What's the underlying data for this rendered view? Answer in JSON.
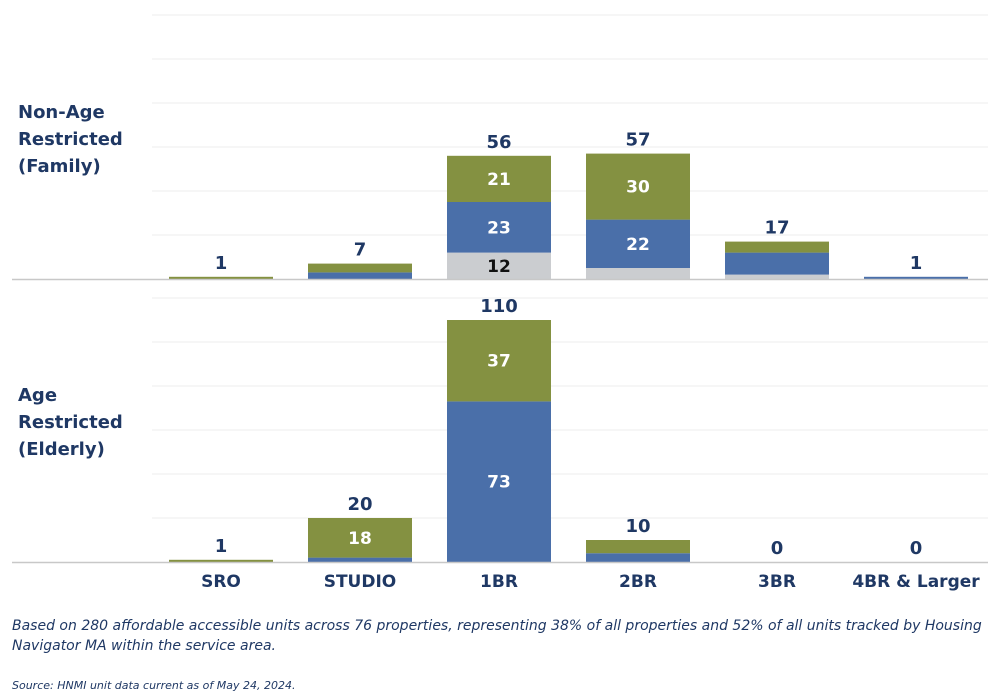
{
  "colors": {
    "green": "#849141",
    "blue": "#4a6fa9",
    "gray": "#cbcdd0",
    "text": "#1f3864",
    "grid": "#ececec",
    "axis": "#c8c8c8"
  },
  "chart_data": {
    "type": "bar",
    "stacked": true,
    "categories": [
      "SRO",
      "STUDIO",
      "1BR",
      "2BR",
      "3BR",
      "4BR & Larger"
    ],
    "panels": [
      {
        "label": "Non-Age\nRestricted\n(Family)",
        "ylim": [
          0,
          120
        ],
        "totals": [
          1,
          7,
          56,
          57,
          17,
          1
        ],
        "series": [
          {
            "color": "gray",
            "values": [
              0,
              0,
              12,
              5,
              2,
              0
            ],
            "labels": [
              "",
              "",
              "12",
              "",
              "",
              ""
            ]
          },
          {
            "color": "blue",
            "values": [
              0,
              3,
              23,
              22,
              10,
              1
            ],
            "labels": [
              "",
              "",
              "23",
              "22",
              "",
              ""
            ]
          },
          {
            "color": "green",
            "values": [
              1,
              4,
              21,
              30,
              5,
              0
            ],
            "labels": [
              "",
              "",
              "21",
              "30",
              "",
              ""
            ]
          }
        ]
      },
      {
        "label": "Age\nRestricted\n(Elderly)",
        "ylim": [
          0,
          120
        ],
        "totals": [
          1,
          20,
          110,
          10,
          0,
          0
        ],
        "series": [
          {
            "color": "gray",
            "values": [
              0,
              0,
              0,
              0,
              0,
              0
            ],
            "labels": [
              "",
              "",
              "",
              "",
              "",
              ""
            ]
          },
          {
            "color": "blue",
            "values": [
              0,
              2,
              73,
              4,
              0,
              0
            ],
            "labels": [
              "",
              "",
              "73",
              "",
              "",
              ""
            ]
          },
          {
            "color": "green",
            "values": [
              1,
              18,
              37,
              6,
              0,
              0
            ],
            "labels": [
              "",
              "18",
              "37",
              "",
              "",
              ""
            ]
          }
        ]
      }
    ],
    "grid": true
  },
  "footnote": "Based on 280 affordable accessible units across 76 properties, representing 38% of all properties and 52% of all units tracked by Housing Navigator MA within the service area.",
  "source": "Source: HNMI unit data current as of May 24, 2024."
}
